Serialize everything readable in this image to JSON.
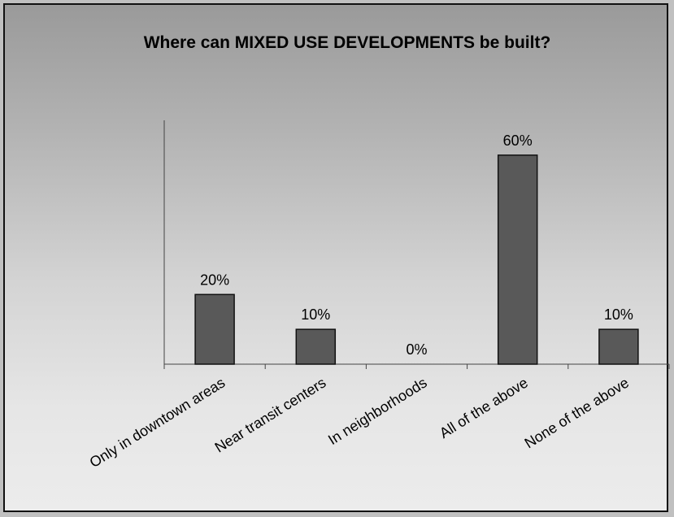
{
  "chart_data": {
    "type": "bar",
    "title": "Where can MIXED USE DEVELOPMENTS be built?",
    "categories": [
      "Only in downtown areas",
      "Near transit centers",
      "In neighborhoods",
      "All of the above",
      "None of the above"
    ],
    "values": [
      20,
      10,
      0,
      60,
      10
    ],
    "data_labels": [
      "20%",
      "10%",
      "0%",
      "60%",
      "10%"
    ],
    "xlabel": "",
    "ylabel": "",
    "ylim": [
      0,
      70
    ],
    "grid": false,
    "legend": "none",
    "bar_color": "#595959",
    "frame_color": "#111111"
  }
}
